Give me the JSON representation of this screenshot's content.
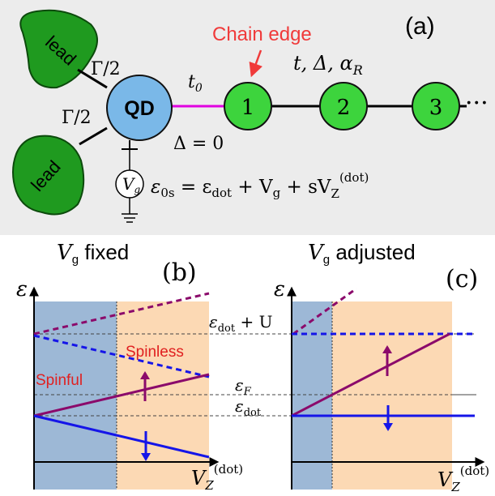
{
  "panel_a": {
    "label": "(a)",
    "chain_edge": "Chain edge",
    "lead_top": "lead",
    "lead_bottom": "lead",
    "gamma_top": "Γ/2",
    "gamma_bottom": "Γ/2",
    "qd": "QD",
    "t0": "t",
    "t0_sub": "0",
    "delta0": "Δ = 0",
    "chain_params": "t, Δ, α",
    "chain_params_sub": "R",
    "sites": [
      "1",
      "2",
      "3"
    ],
    "ellipsis": "···",
    "vg": "V",
    "vg_sub": "g",
    "energy_eq_lhs": "ε",
    "energy_eq_lhs_sub": "0s",
    "energy_eq_rhs": " = ε",
    "energy_eq_dot": "dot",
    "energy_eq_plus": " + V",
    "energy_eq_g": "g",
    "energy_eq_s": " + sV",
    "energy_eq_z": "Z",
    "energy_eq_sup": "(dot)",
    "colors": {
      "lead_fill": "#1f9a1f",
      "qd_fill": "#7ab8e8",
      "site_fill": "#3dd43d",
      "coupling_line": "#e000e0",
      "chain_edge_text": "#f03a3a"
    }
  },
  "panel_b": {
    "title_v": "V",
    "title_sub": "g",
    "title_text": " fixed",
    "label": "(b)",
    "y_axis": "ε",
    "x_axis": "V",
    "x_axis_sub": "Z",
    "x_axis_sup": "(dot)",
    "spinless": "Spinless",
    "spinful": "Spinful"
  },
  "panel_c": {
    "title_v": "V",
    "title_sub": "g",
    "title_text": " adjusted",
    "label": "(c)",
    "y_axis": "ε",
    "x_axis": "V",
    "x_axis_sub": "Z",
    "x_axis_sup": "(dot)"
  },
  "levels": {
    "edot_plus_u": "ε",
    "edot_plus_u_sub": "dot",
    "edot_plus_u_tail": " + U",
    "ef": "ε",
    "ef_sub": "F",
    "edot": "ε",
    "edot_sub": "dot"
  },
  "colors": {
    "spinful_region": "#9db8d6",
    "spinless_region": "#fcd9b4",
    "purple": "#8b0a6b",
    "blue": "#1515e8",
    "red_text": "#e02020"
  }
}
